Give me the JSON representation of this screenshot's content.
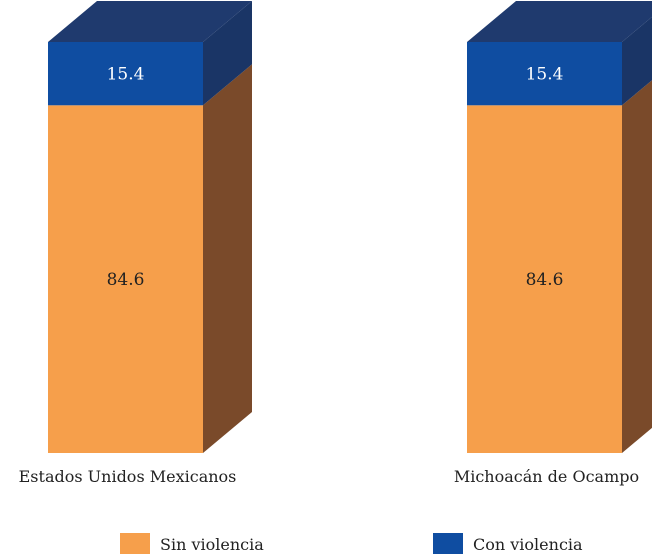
{
  "chart_data": {
    "type": "bar",
    "stacked": true,
    "style": "3d-stacked-100",
    "categories": [
      "Estados Unidos Mexicanos",
      "Michoacán de Ocampo"
    ],
    "series": [
      {
        "name": "Sin violencia",
        "values": [
          84.6,
          84.6
        ],
        "color": "#F69F4B",
        "side_color": "#7A4A2A",
        "label_color": "#222222"
      },
      {
        "name": "Con violencia",
        "values": [
          15.4,
          15.4
        ],
        "color": "#0F4DA1",
        "side_color": "#1A3566",
        "top_color": "#1F3A6E",
        "label_color": "#FFFFFF"
      }
    ],
    "value_labels": [
      [
        "84.6",
        "84.6"
      ],
      [
        "15.4",
        "15.4"
      ]
    ],
    "legend": {
      "position": "bottom",
      "entries": [
        "Sin violencia",
        "Con violencia"
      ]
    },
    "ylim": [
      0,
      100
    ],
    "grid": false
  }
}
